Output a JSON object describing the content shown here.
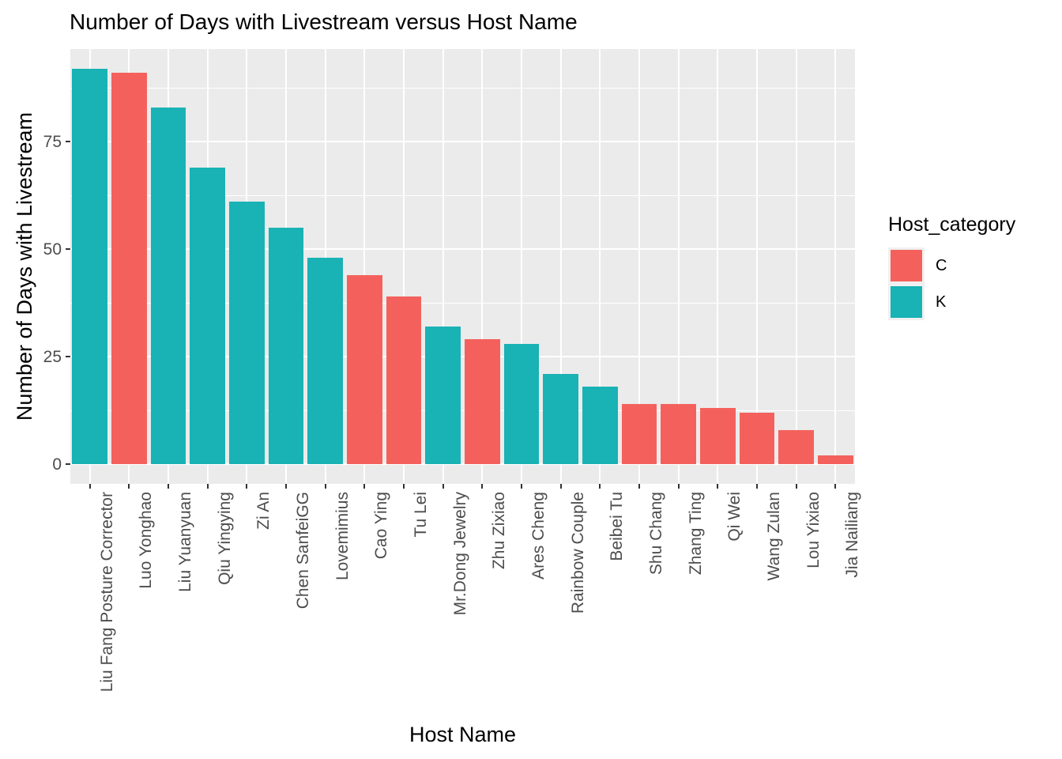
{
  "title": "Number of Days with Livestream versus Host Name",
  "chart_data": {
    "type": "bar",
    "title": "Number of Days with Livestream versus Host Name",
    "xlabel": "Host Name",
    "ylabel": "Number of Days with Livestream",
    "categories": [
      "Liu Fang Posture Corrector",
      "Luo Yonghao",
      "Liu Yuanyuan",
      "Qiu Yingying",
      "Zi An",
      "Chen SanfeiGG",
      "Lovemimius",
      "Cao Ying",
      "Tu Lei",
      "Mr.Dong Jewelry",
      "Zhu Zixiao",
      "Ares Cheng",
      "Rainbow Couple",
      "Beibei Tu",
      "Shu Chang",
      "Zhang Ting",
      "Qi Wei",
      "Wang Zulan",
      "Lou Yixiao",
      "Jia Nailiang"
    ],
    "values": [
      92,
      91,
      83,
      69,
      61,
      55,
      48,
      44,
      39,
      32,
      29,
      28,
      21,
      18,
      14,
      14,
      13,
      12,
      8,
      2
    ],
    "category_group": [
      "K",
      "C",
      "K",
      "K",
      "K",
      "K",
      "K",
      "C",
      "C",
      "K",
      "C",
      "K",
      "K",
      "K",
      "C",
      "C",
      "C",
      "C",
      "C",
      "C"
    ],
    "yticks": [
      0,
      25,
      50,
      75
    ],
    "ytick_labels": [
      "0",
      "25",
      "50",
      "75"
    ],
    "minor_yticks": [
      12.5,
      37.5,
      62.5,
      87.5
    ],
    "ylim": [
      -4.6,
      96.6
    ],
    "grid": "on",
    "legend": {
      "title": "Host_category",
      "position": "right",
      "items": [
        {
          "label": "C",
          "color": "#F4615C"
        },
        {
          "label": "K",
          "color": "#19B2B5"
        }
      ]
    },
    "colors": {
      "panel_bg": "#EBEBEB",
      "grid": "#FFFFFF",
      "tick_mark": "#333333",
      "tick_label": "#4D4D4D",
      "text": "#000000",
      "bar_C": "#F4615C",
      "bar_K": "#19B2B5"
    }
  }
}
